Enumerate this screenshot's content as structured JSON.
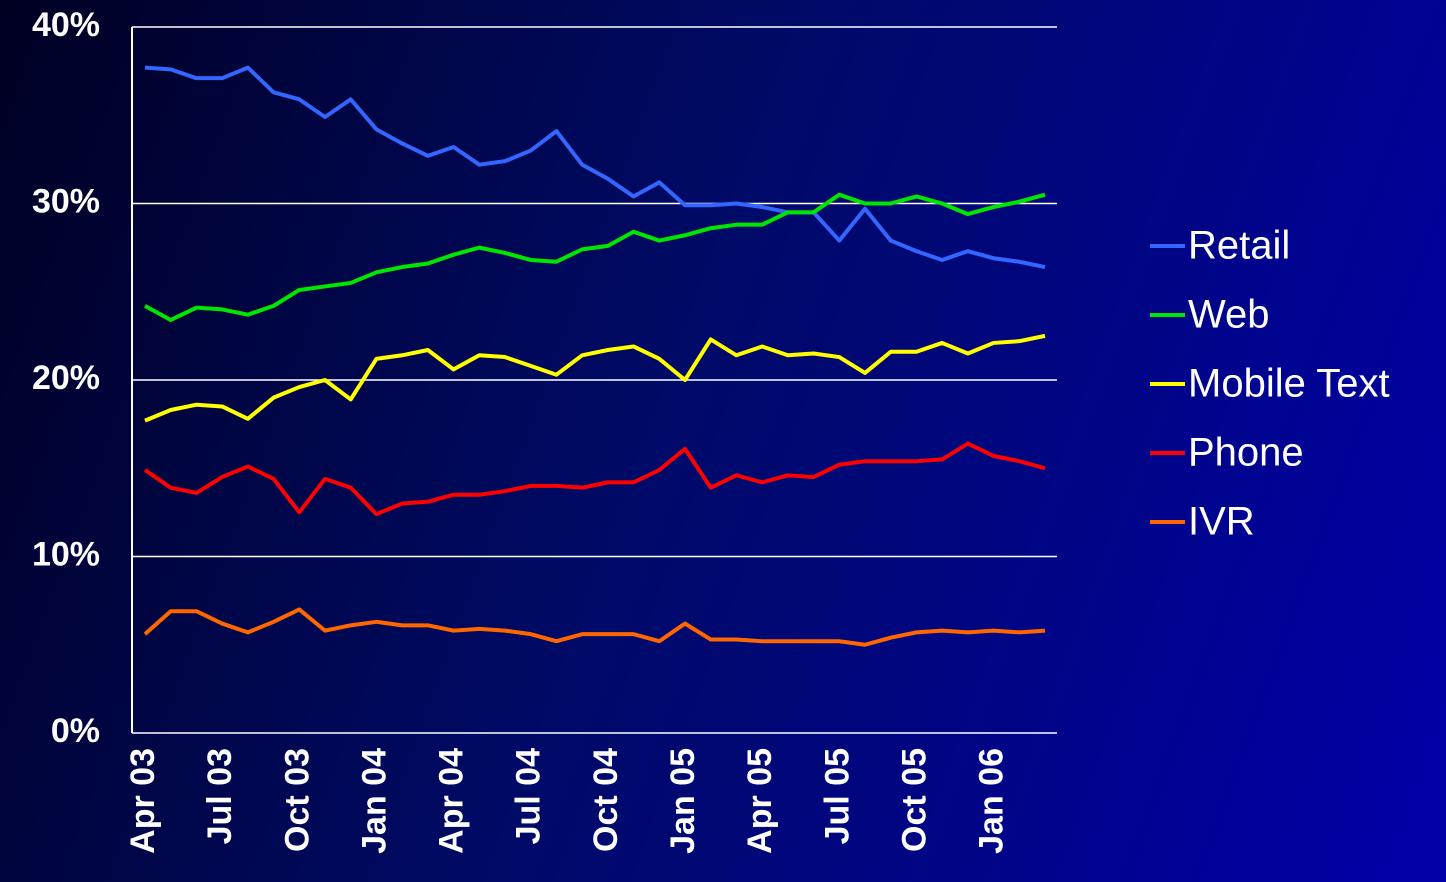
{
  "chart_data": {
    "type": "line",
    "categories": [
      "Apr 03",
      null,
      null,
      "Jul 03",
      null,
      null,
      "Oct 03",
      null,
      null,
      "Jan 04",
      null,
      null,
      "Apr 04",
      null,
      null,
      "Jul 04",
      null,
      null,
      "Oct 04",
      null,
      null,
      "Jan 05",
      null,
      null,
      "Apr 05",
      null,
      null,
      "Jul 05",
      null,
      null,
      "Oct 05",
      null,
      null,
      "Jan 06",
      null,
      null
    ],
    "series": [
      {
        "name": "Retail",
        "color": "#3366ff",
        "values": [
          37.7,
          37.6,
          37.1,
          37.1,
          37.7,
          36.3,
          35.9,
          34.9,
          35.9,
          34.2,
          33.4,
          32.7,
          33.2,
          32.2,
          32.4,
          33.0,
          34.1,
          32.2,
          31.4,
          30.4,
          31.2,
          29.9,
          29.9,
          30.0,
          29.8,
          29.5,
          29.5,
          27.9,
          29.7,
          27.9,
          27.3,
          26.8,
          27.3,
          26.9,
          26.7,
          26.4
        ]
      },
      {
        "name": "Web",
        "color": "#00e600",
        "values": [
          24.2,
          23.4,
          24.1,
          24.0,
          23.7,
          24.2,
          25.1,
          25.3,
          25.5,
          26.1,
          26.4,
          26.6,
          27.1,
          27.5,
          27.2,
          26.8,
          26.7,
          27.4,
          27.6,
          28.4,
          27.9,
          28.2,
          28.6,
          28.8,
          28.8,
          29.5,
          29.5,
          30.5,
          30.0,
          30.0,
          30.4,
          30.0,
          29.4,
          29.8,
          30.1,
          30.5
        ]
      },
      {
        "name": "Mobile Text",
        "color": "#ffff00",
        "values": [
          17.7,
          18.3,
          18.6,
          18.5,
          17.8,
          19.0,
          19.6,
          20.0,
          18.9,
          21.2,
          21.4,
          21.7,
          20.6,
          21.4,
          21.3,
          20.8,
          20.3,
          21.4,
          21.7,
          21.9,
          21.2,
          20.0,
          22.3,
          21.4,
          21.9,
          21.4,
          21.5,
          21.3,
          20.4,
          21.6,
          21.6,
          22.1,
          21.5,
          22.1,
          22.2,
          22.5
        ]
      },
      {
        "name": "Phone",
        "color": "#ff0000",
        "values": [
          14.9,
          13.9,
          13.6,
          14.5,
          15.1,
          14.4,
          12.5,
          14.4,
          13.9,
          12.4,
          13.0,
          13.1,
          13.5,
          13.5,
          13.7,
          14.0,
          14.0,
          13.9,
          14.2,
          14.2,
          14.9,
          16.1,
          13.9,
          14.6,
          14.2,
          14.6,
          14.5,
          15.2,
          15.4,
          15.4,
          15.4,
          15.5,
          16.4,
          15.7,
          15.4,
          15.0
        ]
      },
      {
        "name": "IVR",
        "color": "#ff6600",
        "values": [
          5.6,
          6.9,
          6.9,
          6.2,
          5.7,
          6.3,
          7.0,
          5.8,
          6.1,
          6.3,
          6.1,
          6.1,
          5.8,
          5.9,
          5.8,
          5.6,
          5.2,
          5.6,
          5.6,
          5.6,
          5.2,
          6.2,
          5.3,
          5.3,
          5.2,
          5.2,
          5.2,
          5.2,
          5.0,
          5.4,
          5.7,
          5.8,
          5.7,
          5.8,
          5.7,
          5.8
        ]
      }
    ],
    "ylim": [
      0,
      40
    ],
    "yticks": [
      {
        "value": 0,
        "label": "0%"
      },
      {
        "value": 10,
        "label": "10%"
      },
      {
        "value": 20,
        "label": "20%"
      },
      {
        "value": 30,
        "label": "30%"
      },
      {
        "value": 40,
        "label": "40%"
      }
    ],
    "grid": true,
    "legend": "right"
  }
}
